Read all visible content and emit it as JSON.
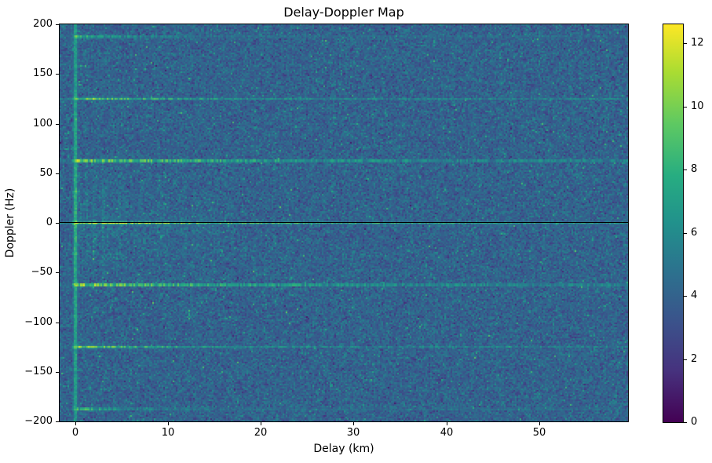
{
  "chart_data": {
    "type": "heatmap",
    "title": "Delay-Doppler Map",
    "xlabel": "Delay (km)",
    "ylabel": "Doppler (Hz)",
    "xlim": [
      -1.7,
      59.6
    ],
    "ylim": [
      -200,
      200
    ],
    "xticks": [
      0,
      10,
      20,
      30,
      40,
      50
    ],
    "xtick_labels": [
      "0",
      "10",
      "20",
      "30",
      "40",
      "50"
    ],
    "yticks": [
      200,
      150,
      100,
      50,
      0,
      -50,
      -100,
      -150,
      -200
    ],
    "ytick_labels": [
      "200",
      "150",
      "100",
      "50",
      "0",
      "−50",
      "−100",
      "−150",
      "−200"
    ],
    "grid": false,
    "colormap": "viridis",
    "colorbar": {
      "min": 0,
      "max": 12.6,
      "ticks": [
        0,
        2,
        4,
        6,
        8,
        10,
        12
      ],
      "tick_labels": [
        "0",
        "2",
        "4",
        "6",
        "8",
        "10",
        "12"
      ],
      "position": "right"
    },
    "features": {
      "background_noise": {
        "mean": 4.0,
        "std": 0.85,
        "speckle_prob": 0.015,
        "speckle_boost": 2.8
      },
      "zero_doppler_line": {
        "doppler_hz": 0,
        "peak": 12.6,
        "floor": 6.6,
        "decay_km": 16,
        "black_notch": true
      },
      "doppler_lines": [
        {
          "doppler_hz": 62.5,
          "peak": 11.6,
          "floor": 6.0,
          "decay_km": 18
        },
        {
          "doppler_hz": -62.5,
          "peak": 11.6,
          "floor": 6.0,
          "decay_km": 18
        },
        {
          "doppler_hz": 125,
          "peak": 10.2,
          "floor": 5.3,
          "decay_km": 10
        },
        {
          "doppler_hz": -125,
          "peak": 10.2,
          "floor": 5.3,
          "decay_km": 10
        },
        {
          "doppler_hz": 187.5,
          "peak": 9.2,
          "floor": 4.7,
          "decay_km": 6
        },
        {
          "doppler_hz": -187.5,
          "peak": 9.2,
          "floor": 4.7,
          "decay_km": 6
        }
      ],
      "zero_delay_stripe": {
        "delay_km": 0,
        "base_value": 7.2,
        "dot_spacing_hz": 31.25,
        "dot_peak": 11.8,
        "dot_falloff_per_order": 0.55
      },
      "comb_streaks": {
        "delay_range_km": [
          0,
          17
        ],
        "doppler_halfwidth_hz": 70,
        "max_boost": 1.9,
        "decay_km": 10
      }
    },
    "seed": 42
  }
}
